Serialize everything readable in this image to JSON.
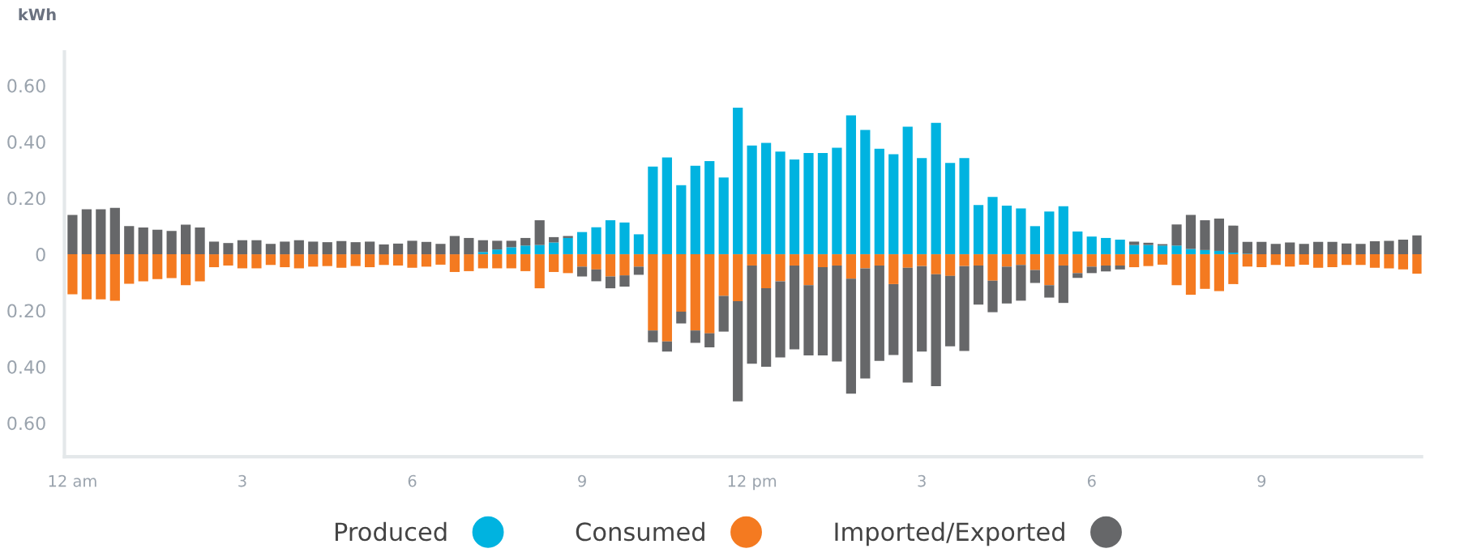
{
  "chart_data": {
    "type": "bar",
    "stacked": true,
    "ylabel": "kWh",
    "legend": "bottom",
    "grid": false,
    "categories": [
      "12 am",
      null,
      null,
      null,
      null,
      null,
      null,
      null,
      null,
      null,
      null,
      null,
      "3",
      null,
      null,
      null,
      null,
      null,
      null,
      null,
      null,
      null,
      null,
      null,
      "6",
      null,
      null,
      null,
      null,
      null,
      null,
      null,
      null,
      null,
      null,
      null,
      "9",
      null,
      null,
      null,
      null,
      null,
      null,
      null,
      null,
      null,
      null,
      null,
      "12 pm",
      null,
      null,
      null,
      null,
      null,
      null,
      null,
      null,
      null,
      null,
      null,
      "3",
      null,
      null,
      null,
      null,
      null,
      null,
      null,
      null,
      null,
      null,
      null,
      "6",
      null,
      null,
      null,
      null,
      null,
      null,
      null,
      null,
      null,
      null,
      null,
      "9",
      null,
      null,
      null,
      null,
      null,
      null,
      null,
      null,
      null,
      null,
      null
    ],
    "ylim": [
      -0.72,
      0.72
    ],
    "yticks": [
      {
        "value": -0.6,
        "label": "0.60"
      },
      {
        "value": -0.4,
        "label": "0.40"
      },
      {
        "value": -0.2,
        "label": "0.20"
      },
      0,
      {
        "value": 0.2,
        "label": "0.20"
      },
      {
        "value": 0.4,
        "label": "0.40"
      },
      {
        "value": 0.6,
        "label": "0.60"
      }
    ],
    "series": [
      {
        "name": "Produced",
        "color": "#00b3e0",
        "values": [
          null,
          null,
          null,
          null,
          null,
          null,
          null,
          null,
          null,
          null,
          null,
          null,
          null,
          null,
          null,
          null,
          null,
          null,
          null,
          null,
          null,
          null,
          null,
          null,
          null,
          null,
          null,
          null,
          null,
          0.008,
          0.017,
          0.025,
          0.031,
          0.033,
          0.042,
          0.058,
          0.079,
          0.096,
          0.121,
          0.113,
          0.071,
          0.312,
          0.344,
          0.246,
          0.315,
          0.331,
          0.273,
          0.521,
          0.387,
          0.396,
          0.365,
          0.337,
          0.36,
          0.36,
          0.379,
          0.494,
          0.442,
          0.375,
          0.356,
          0.454,
          0.342,
          0.467,
          0.325,
          0.342,
          0.175,
          0.204,
          0.173,
          0.163,
          0.1,
          0.152,
          0.171,
          0.081,
          0.063,
          0.058,
          0.052,
          0.033,
          0.033,
          0.031,
          0.031,
          0.019,
          0.015,
          0.012,
          0.006,
          0.002,
          null,
          null,
          null,
          null,
          null,
          null,
          null,
          null,
          null,
          null,
          null,
          null
        ]
      },
      {
        "name": "Consumed",
        "color": "#f47a20",
        "values": [
          -0.142,
          -0.16,
          -0.16,
          -0.165,
          -0.105,
          -0.096,
          -0.088,
          -0.085,
          -0.11,
          -0.096,
          -0.046,
          -0.04,
          -0.05,
          -0.05,
          -0.038,
          -0.046,
          -0.05,
          -0.044,
          -0.042,
          -0.048,
          -0.042,
          -0.046,
          -0.038,
          -0.04,
          -0.048,
          -0.044,
          -0.037,
          -0.063,
          -0.06,
          -0.05,
          -0.05,
          -0.05,
          -0.06,
          -0.121,
          -0.063,
          -0.067,
          -0.044,
          -0.054,
          -0.079,
          -0.075,
          -0.044,
          -0.271,
          -0.31,
          -0.204,
          -0.271,
          -0.281,
          -0.148,
          -0.167,
          -0.04,
          -0.121,
          -0.096,
          -0.04,
          -0.11,
          -0.046,
          -0.04,
          -0.087,
          -0.05,
          -0.04,
          -0.106,
          -0.048,
          -0.042,
          -0.071,
          -0.077,
          -0.042,
          -0.04,
          -0.094,
          -0.044,
          -0.038,
          -0.056,
          -0.11,
          -0.04,
          -0.067,
          -0.044,
          -0.04,
          -0.04,
          -0.046,
          -0.042,
          -0.037,
          -0.11,
          -0.144,
          -0.123,
          -0.131,
          -0.106,
          -0.044,
          -0.046,
          -0.038,
          -0.044,
          -0.037,
          -0.048,
          -0.046,
          -0.038,
          -0.038,
          -0.048,
          -0.05,
          -0.054,
          -0.069
        ]
      },
      {
        "name": "Imported/Exported",
        "color": "#666769",
        "values": [
          0.14,
          0.16,
          0.16,
          0.165,
          0.1,
          0.095,
          0.087,
          0.083,
          0.105,
          0.095,
          0.045,
          0.04,
          0.05,
          0.05,
          0.037,
          0.045,
          0.05,
          0.045,
          0.043,
          0.047,
          0.043,
          0.045,
          0.035,
          0.038,
          0.048,
          0.044,
          0.037,
          0.065,
          0.058,
          0.042,
          0.031,
          0.023,
          0.027,
          0.088,
          0.019,
          0.007,
          -0.035,
          -0.042,
          -0.042,
          -0.04,
          -0.029,
          -0.042,
          -0.036,
          -0.042,
          -0.044,
          -0.05,
          -0.127,
          -0.356,
          -0.349,
          -0.279,
          -0.271,
          -0.298,
          -0.25,
          -0.314,
          -0.341,
          -0.409,
          -0.392,
          -0.339,
          -0.252,
          -0.408,
          -0.304,
          -0.398,
          -0.25,
          -0.302,
          -0.139,
          -0.112,
          -0.131,
          -0.127,
          -0.046,
          -0.044,
          -0.133,
          -0.017,
          -0.023,
          -0.021,
          -0.014,
          0.012,
          0.008,
          0.005,
          0.075,
          0.121,
          0.106,
          0.115,
          0.096,
          0.042,
          0.044,
          0.037,
          0.042,
          0.037,
          0.044,
          0.044,
          0.038,
          0.037,
          0.046,
          0.048,
          0.052,
          0.067
        ]
      }
    ]
  }
}
